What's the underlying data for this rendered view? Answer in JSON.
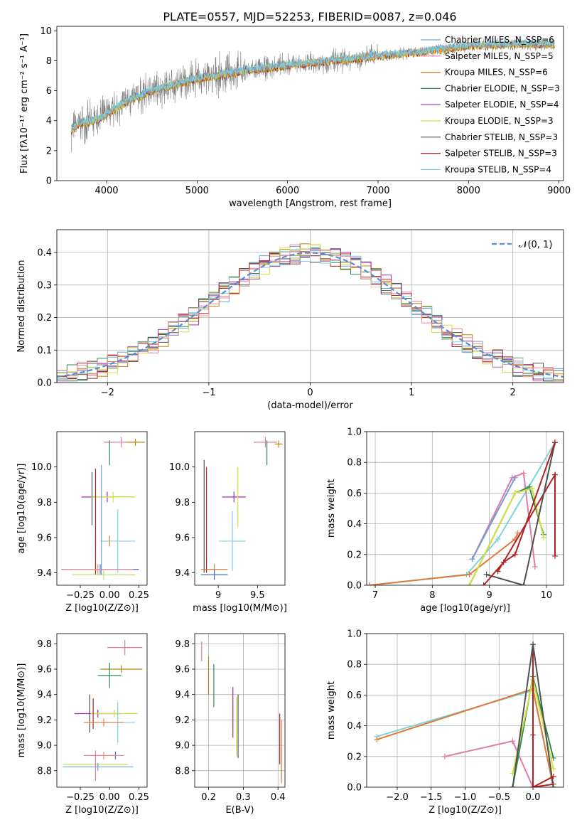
{
  "title": "PLATE=0557, MJD=52253, FIBERID=0087, z=0.046",
  "colors": [
    "#6f9fd8",
    "#e07aa8",
    "#b8860b",
    "#2e8b57",
    "#9b30b0",
    "#d4e040",
    "#505050",
    "#b22222",
    "#7fd3d8",
    "#e07b39",
    "#4c6fd0",
    "#f08a8a",
    "#c0e070"
  ],
  "chart_data": [
    {
      "id": "spectrum",
      "type": "line",
      "title": "PLATE=0557, MJD=52253, FIBERID=0087, z=0.046",
      "xlabel": "wavelength [Angstrom, rest frame]",
      "ylabel": "Flux [fλ10⁻¹⁷ erg cm⁻² s⁻¹ A⁻¹]",
      "xlim": [
        3450,
        9050
      ],
      "ylim": [
        0,
        10.3
      ],
      "xticks": [
        4000,
        5000,
        6000,
        7000,
        8000,
        9000
      ],
      "yticks": [
        0,
        2,
        4,
        6,
        8,
        10
      ],
      "continuum": {
        "x": [
          3600,
          3700,
          3800,
          3900,
          4000,
          4200,
          4500,
          5000,
          5500,
          6000,
          6500,
          7000,
          7500,
          8000,
          8500,
          8950
        ],
        "y": [
          3.3,
          3.8,
          3.9,
          4.1,
          4.4,
          5.2,
          6.0,
          6.8,
          7.3,
          7.7,
          8.0,
          8.3,
          8.6,
          9.0,
          9.1,
          9.1
        ]
      },
      "legend": [
        "Chabrier MILES, N_SSP=6",
        "Salpeter MILES, N_SSP=5",
        "Kroupa MILES, N_SSP=6",
        "Chabrier ELODIE, N_SSP=3",
        "Salpeter ELODIE, N_SSP=4",
        "Kroupa ELODIE, N_SSP=3",
        "Chabrier STELIB, N_SSP=3",
        "Salpeter STELIB, N_SSP=3",
        "Kroupa STELIB, N_SSP=4"
      ],
      "legend_position": "right"
    },
    {
      "id": "residuals",
      "type": "line",
      "xlabel": "(data-model)/error",
      "ylabel": "Normed distribution",
      "xlim": [
        -2.5,
        2.5
      ],
      "ylim": [
        0,
        0.47
      ],
      "xticks": [
        -2,
        -1,
        0,
        1,
        2
      ],
      "yticks": [
        0.0,
        0.1,
        0.2,
        0.3,
        0.4
      ],
      "series": [
        {
          "name": "N(0,1)",
          "mean": 0,
          "sigma": 1
        }
      ],
      "grid": true,
      "legend_position": "upper right"
    },
    {
      "id": "age-z",
      "type": "scatter",
      "xlabel": "Z [log10(Z/Z⊙)]",
      "ylabel": "age  [log10(age/yr)]",
      "xlim": [
        -0.45,
        0.32
      ],
      "ylim": [
        9.33,
        10.2
      ],
      "xticks": [
        -0.25,
        0.0,
        0.25
      ],
      "xticklabels": [
        "−0.25",
        "0.00",
        "0.25"
      ],
      "yticks": [
        9.4,
        9.6,
        9.8,
        10.0
      ],
      "points": [
        {
          "x": 0.1,
          "y": 10.14,
          "xerr": 0.15,
          "yerr": 0.0
        },
        {
          "x": 0.22,
          "y": 10.14,
          "xerr": 0.08,
          "yerr": 0.02
        },
        {
          "x": 0.0,
          "y": 10.08,
          "xerr": 0.0,
          "yerr": 0.07
        },
        {
          "x": -0.02,
          "y": 9.83,
          "xerr": 0.22,
          "yerr": 0.0
        },
        {
          "x": 0.03,
          "y": 9.83,
          "xerr": 0.19,
          "yerr": 0.0
        },
        {
          "x": -0.15,
          "y": 9.82,
          "xerr": 0.0,
          "yerr": 0.15
        },
        {
          "x": -0.12,
          "y": 9.69,
          "xerr": 0.0,
          "yerr": 0.3
        },
        {
          "x": 0.07,
          "y": 9.58,
          "xerr": 0.15,
          "yerr": 0.18
        },
        {
          "x": 0.0,
          "y": 9.58,
          "xerr": 0.0,
          "yerr": 0.0
        },
        {
          "x": -0.08,
          "y": 9.42,
          "xerr": 0.33,
          "yerr": 0.0
        },
        {
          "x": -0.1,
          "y": 9.42,
          "xerr": 0.3,
          "yerr": 0.0
        },
        {
          "x": -0.05,
          "y": 9.39,
          "xerr": 0.27,
          "yerr": 0.0
        },
        {
          "x": -0.07,
          "y": 9.7,
          "xerr": 0.0,
          "yerr": 0.31
        }
      ]
    },
    {
      "id": "age-mass",
      "type": "scatter",
      "xlabel": "mass [log10(M/M⊙)]",
      "ylabel": "",
      "xlim": [
        8.7,
        9.85
      ],
      "ylim": [
        9.33,
        10.2
      ],
      "xticks": [
        9.0,
        9.5
      ],
      "yticks": [
        9.4,
        9.6,
        9.8,
        10.0
      ],
      "points": [
        {
          "x": 9.6,
          "y": 10.14,
          "xerr": 0.15,
          "yerr": 0.0
        },
        {
          "x": 9.77,
          "y": 10.13,
          "xerr": 0.05,
          "yerr": 0.02
        },
        {
          "x": 9.62,
          "y": 10.08,
          "xerr": 0.0,
          "yerr": 0.07
        },
        {
          "x": 9.2,
          "y": 9.83,
          "xerr": 0.15,
          "yerr": 0.0
        },
        {
          "x": 9.25,
          "y": 9.83,
          "xerr": 0.0,
          "yerr": 0.17
        },
        {
          "x": 8.82,
          "y": 9.72,
          "xerr": 0.0,
          "yerr": 0.32
        },
        {
          "x": 8.85,
          "y": 9.7,
          "xerr": 0.0,
          "yerr": 0.3
        },
        {
          "x": 9.18,
          "y": 9.58,
          "xerr": 0.17,
          "yerr": 0.17
        },
        {
          "x": 8.95,
          "y": 9.42,
          "xerr": 0.17,
          "yerr": 0.0
        },
        {
          "x": 8.95,
          "y": 9.39,
          "xerr": 0.17,
          "yerr": 0.0
        }
      ]
    },
    {
      "id": "weight-age",
      "type": "line",
      "xlabel": "age  [log10(age/yr)]",
      "ylabel": "mass weight",
      "xlim": [
        6.85,
        10.3
      ],
      "ylim": [
        0,
        1.0
      ],
      "xticks": [
        7,
        8,
        9,
        10
      ],
      "yticks": [
        0.0,
        0.2,
        0.4,
        0.6,
        0.8,
        1.0
      ],
      "grid": true,
      "series": [
        {
          "x": [
            6.9,
            8.6,
            9.15,
            10.15
          ],
          "y": [
            0.0,
            0.07,
            0.3,
            0.93
          ]
        },
        {
          "x": [
            6.9,
            8.65,
            9.45,
            9.5
          ],
          "y": [
            0.0,
            0.07,
            0.3,
            0.34
          ]
        },
        {
          "x": [
            8.7,
            9.4,
            9.6,
            9.8
          ],
          "y": [
            0.17,
            0.7,
            0.73,
            0.12
          ]
        },
        {
          "x": [
            8.65,
            9.45,
            9.7,
            9.95
          ],
          "y": [
            0.0,
            0.6,
            0.64,
            0.33
          ]
        },
        {
          "x": [
            8.65,
            9.45,
            9.75,
            9.95
          ],
          "y": [
            0.0,
            0.6,
            0.63,
            0.31
          ]
        },
        {
          "x": [
            9.15,
            10.15,
            10.15
          ],
          "y": [
            0.09,
            0.72,
            0.19
          ]
        },
        {
          "x": [
            8.95,
            9.6,
            10.15
          ],
          "y": [
            0.07,
            0.0,
            0.93
          ]
        },
        {
          "x": [
            8.9,
            9.25,
            9.45,
            10.15
          ],
          "y": [
            0.0,
            0.15,
            0.2,
            0.93
          ]
        },
        {
          "x": [
            8.7,
            9.45
          ],
          "y": [
            0.17,
            0.7
          ]
        }
      ]
    },
    {
      "id": "mass-z",
      "type": "scatter",
      "xlabel": "Z [log10(Z/Z⊙)]",
      "ylabel": "mass [log10(M/M⊙)]",
      "xlim": [
        -0.45,
        0.32
      ],
      "ylim": [
        8.67,
        9.88
      ],
      "xticks": [
        -0.25,
        0.0,
        0.25
      ],
      "xticklabels": [
        "−0.25",
        "0.00",
        "0.25"
      ],
      "yticks": [
        8.8,
        9.0,
        9.2,
        9.4,
        9.6,
        9.8
      ],
      "points": [
        {
          "x": 0.13,
          "y": 9.77,
          "xerr": 0.15,
          "yerr": 0.06
        },
        {
          "x": 0.1,
          "y": 9.6,
          "xerr": 0.18,
          "yerr": 0.0
        },
        {
          "x": 0.0,
          "y": 9.55,
          "xerr": 0.1,
          "yerr": 0.1
        },
        {
          "x": -0.1,
          "y": 9.25,
          "xerr": 0.2,
          "yerr": 0.0
        },
        {
          "x": 0.04,
          "y": 9.25,
          "xerr": 0.2,
          "yerr": 0.0
        },
        {
          "x": -0.17,
          "y": 9.25,
          "xerr": 0.0,
          "yerr": 0.15
        },
        {
          "x": -0.14,
          "y": 9.25,
          "xerr": 0.0,
          "yerr": 0.12
        },
        {
          "x": 0.07,
          "y": 9.18,
          "xerr": 0.15,
          "yerr": 0.16
        },
        {
          "x": -0.05,
          "y": 9.18,
          "xerr": 0.17,
          "yerr": 0.0
        },
        {
          "x": 0.05,
          "y": 8.92,
          "xerr": 0.0,
          "yerr": 0.0
        },
        {
          "x": -0.05,
          "y": 8.92,
          "xerr": 0.17,
          "yerr": 0.0
        },
        {
          "x": -0.12,
          "y": 8.85,
          "xerr": 0.28,
          "yerr": 0.0
        },
        {
          "x": -0.1,
          "y": 8.83,
          "xerr": 0.3,
          "yerr": 0.0
        },
        {
          "x": -0.12,
          "y": 8.84,
          "xerr": 0.0,
          "yerr": 0.12
        }
      ]
    },
    {
      "id": "mass-ebv",
      "type": "scatter",
      "xlabel": "E(B-V)",
      "ylabel": "",
      "xlim": [
        0.16,
        0.42
      ],
      "ylim": [
        8.67,
        9.88
      ],
      "xticks": [
        0.2,
        0.3,
        0.4
      ],
      "yticks": [
        8.8,
        9.0,
        9.2,
        9.4,
        9.6,
        9.8
      ],
      "grid": true,
      "points": [
        {
          "x": 0.18,
          "y": 9.74,
          "xerr": 0.0,
          "yerr": 0.08
        },
        {
          "x": 0.2,
          "y": 9.55,
          "xerr": 0.0,
          "yerr": 0.15
        },
        {
          "x": 0.215,
          "y": 9.47,
          "xerr": 0.0,
          "yerr": 0.17
        },
        {
          "x": 0.27,
          "y": 9.26,
          "xerr": 0.0,
          "yerr": 0.2
        },
        {
          "x": 0.28,
          "y": 9.15,
          "xerr": 0.0,
          "yerr": 0.23
        },
        {
          "x": 0.285,
          "y": 9.15,
          "xerr": 0.0,
          "yerr": 0.25
        },
        {
          "x": 0.405,
          "y": 9.05,
          "xerr": 0.0,
          "yerr": 0.2
        },
        {
          "x": 0.41,
          "y": 8.85,
          "xerr": 0.0,
          "yerr": 0.12
        },
        {
          "x": 0.41,
          "y": 8.95,
          "xerr": 0.0,
          "yerr": 0.25
        }
      ]
    },
    {
      "id": "weight-z",
      "type": "line",
      "xlabel": "Z [log10(Z/Z⊙)]",
      "ylabel": "mass weight",
      "xlim": [
        -2.45,
        0.45
      ],
      "ylim": [
        0,
        1.0
      ],
      "xticks": [
        -2.0,
        -1.5,
        -1.0,
        -0.5,
        0.0
      ],
      "xticklabels": [
        "−2.0",
        "−1.5",
        "−1.0",
        "−0.5",
        "0.0"
      ],
      "yticks": [
        0.0,
        0.2,
        0.4,
        0.6,
        0.8,
        1.0
      ],
      "grid": true,
      "series": [
        {
          "x": [
            -2.3,
            0.0,
            0.3
          ],
          "y": [
            0.33,
            0.63,
            0.0
          ]
        },
        {
          "x": [
            -2.3,
            0.0,
            0.3
          ],
          "y": [
            0.31,
            0.64,
            0.0
          ]
        },
        {
          "x": [
            -1.3,
            -0.3,
            0.0
          ],
          "y": [
            0.2,
            0.3,
            0.0
          ]
        },
        {
          "x": [
            -0.3,
            0.0,
            0.3
          ],
          "y": [
            0.0,
            0.72,
            0.19
          ]
        },
        {
          "x": [
            -0.3,
            0.0,
            0.3
          ],
          "y": [
            0.09,
            0.7,
            0.12
          ]
        },
        {
          "x": [
            0.0,
            0.0,
            0.3
          ],
          "y": [
            0.93,
            0.0,
            0.02
          ]
        },
        {
          "x": [
            -0.3,
            0.0,
            0.3
          ],
          "y": [
            0.0,
            0.93,
            0.0
          ]
        },
        {
          "x": [
            0.0,
            0.0,
            0.3
          ],
          "y": [
            0.34,
            0.0,
            0.07
          ]
        }
      ]
    }
  ]
}
